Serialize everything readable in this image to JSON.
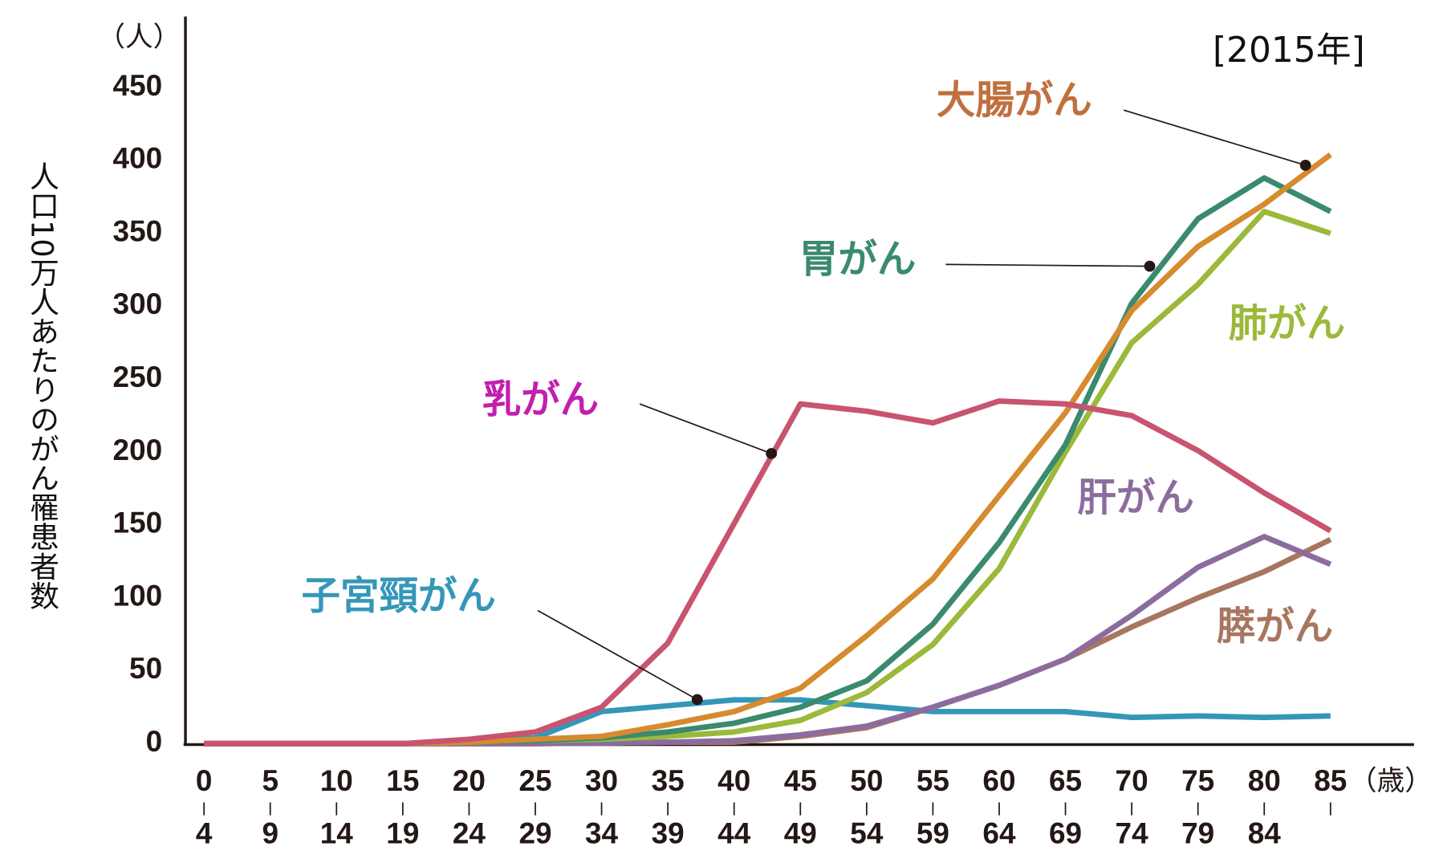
{
  "chart_data": {
    "type": "line",
    "title": "[2015年]",
    "y_unit": "（人）",
    "x_unit": "（歳）",
    "ylabel": "人口10万人あたりのがん罹患者数",
    "categories": [
      "0",
      "5",
      "10",
      "15",
      "20",
      "25",
      "30",
      "35",
      "40",
      "45",
      "50",
      "55",
      "60",
      "65",
      "70",
      "75",
      "80",
      "85"
    ],
    "category_sublabels": [
      "4",
      "9",
      "14",
      "19",
      "24",
      "29",
      "34",
      "39",
      "44",
      "49",
      "54",
      "59",
      "64",
      "69",
      "74",
      "79",
      "84",
      null
    ],
    "ylim": [
      0,
      500
    ],
    "yticks": [
      0,
      50,
      100,
      150,
      200,
      250,
      300,
      350,
      400,
      450
    ],
    "grid": false,
    "series": [
      {
        "name": "子宮頸がん",
        "color": "#3597b8",
        "label_color": "#3597b8",
        "values": [
          0,
          0,
          0,
          0,
          1,
          4,
          22,
          26,
          30,
          30,
          26,
          22,
          22,
          22,
          18,
          19,
          18,
          19
        ]
      },
      {
        "name": "膵がん",
        "color": "#a8765f",
        "label_color": "#a8765f",
        "values": [
          0,
          0,
          0,
          0,
          0,
          0,
          0.5,
          1,
          1,
          5,
          11,
          25,
          40,
          58,
          80,
          100,
          118,
          140
        ]
      },
      {
        "name": "肝がん",
        "color": "#8c6c9e",
        "label_color": "#8c6c9e",
        "values": [
          0,
          0,
          0,
          0,
          0,
          0,
          0.5,
          1,
          2,
          6,
          12,
          25,
          40,
          58,
          88,
          121,
          142,
          123
        ]
      },
      {
        "name": "肺がん",
        "color": "#9bb93a",
        "label_color": "#9bb93a",
        "values": [
          0,
          0,
          0,
          0,
          1,
          2,
          3,
          5,
          8,
          16,
          35,
          68,
          120,
          200,
          275,
          315,
          365,
          350
        ]
      },
      {
        "name": "胃がん",
        "color": "#3a8a6e",
        "label_color": "#3a8a6e",
        "values": [
          0,
          0,
          0,
          0,
          1,
          2,
          4,
          8,
          14,
          25,
          43,
          82,
          138,
          205,
          302,
          360,
          388,
          365
        ]
      },
      {
        "name": "大腸がん",
        "color": "#d68b2e",
        "label_color": "#c0703f",
        "values": [
          0,
          0,
          0,
          0,
          1,
          3,
          5,
          13,
          22,
          38,
          74,
          113,
          170,
          227,
          297,
          341,
          370,
          404
        ]
      },
      {
        "name": "乳がん",
        "color": "#c85470",
        "label_color": "#c21fae",
        "values": [
          0,
          0,
          0,
          0,
          3,
          8,
          25,
          69,
          151,
          233,
          228,
          220,
          235,
          233,
          225,
          201,
          172,
          146
        ]
      }
    ]
  }
}
